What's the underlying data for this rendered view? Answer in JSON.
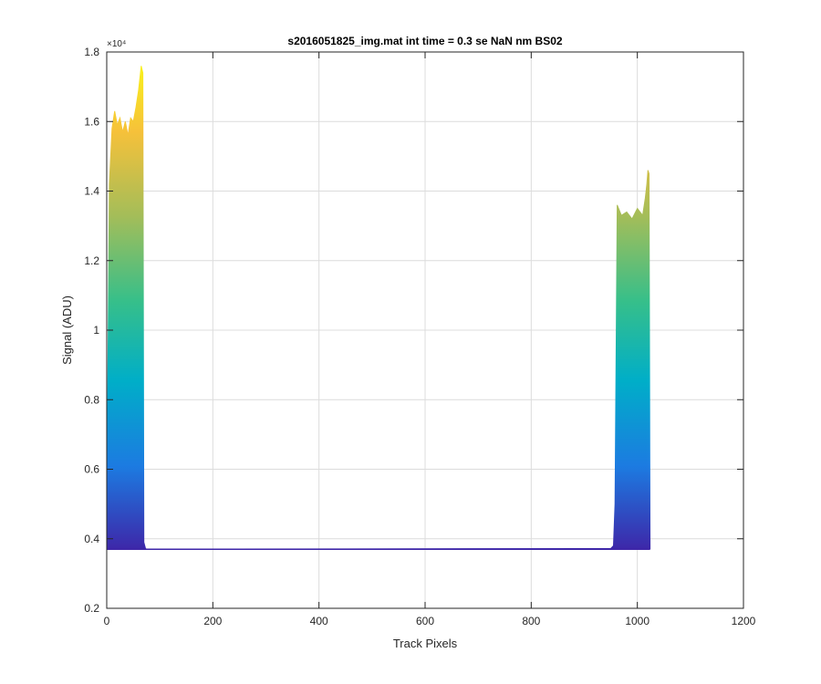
{
  "chart_data": {
    "type": "area",
    "title": "s2016051825_img.mat int time = 0.3 se  NaN nm BS02",
    "xlabel": "Track Pixels",
    "ylabel": "Signal (ADU)",
    "xlim": [
      0,
      1200
    ],
    "ylim": [
      2000,
      18000
    ],
    "xticks": [
      0,
      200,
      400,
      600,
      800,
      1000,
      1200
    ],
    "xtick_labels": [
      "0",
      "200",
      "400",
      "600",
      "800",
      "1000",
      "1200"
    ],
    "yticks": [
      2000,
      4000,
      6000,
      8000,
      10000,
      12000,
      14000,
      16000,
      18000
    ],
    "ytick_labels": [
      "0.2",
      "0.4",
      "0.6",
      "0.8",
      "1",
      "1.2",
      "1.4",
      "1.6",
      "1.8"
    ],
    "y_exponent_label": "×10⁴",
    "grid": true,
    "colormap": [
      "#3e26a8",
      "#1c7be1",
      "#00aec8",
      "#36bf8a",
      "#a3bd59",
      "#f6c13a",
      "#f9fb15"
    ],
    "baseline": 3700,
    "envelope": {
      "x": [
        0,
        2,
        5,
        10,
        15,
        20,
        25,
        30,
        35,
        40,
        45,
        50,
        55,
        60,
        65,
        68,
        70,
        73,
        75,
        950,
        955,
        958,
        962,
        970,
        980,
        990,
        1000,
        1010,
        1015,
        1018,
        1020,
        1022,
        1024
      ],
      "y": [
        4000,
        8500,
        14200,
        15800,
        16300,
        15900,
        16100,
        15700,
        16000,
        15600,
        16100,
        16000,
        16400,
        16900,
        17600,
        17400,
        3900,
        3720,
        3700,
        3720,
        3800,
        5000,
        13600,
        13300,
        13400,
        13200,
        13500,
        13300,
        13800,
        14200,
        14600,
        14500,
        3700
      ]
    }
  }
}
